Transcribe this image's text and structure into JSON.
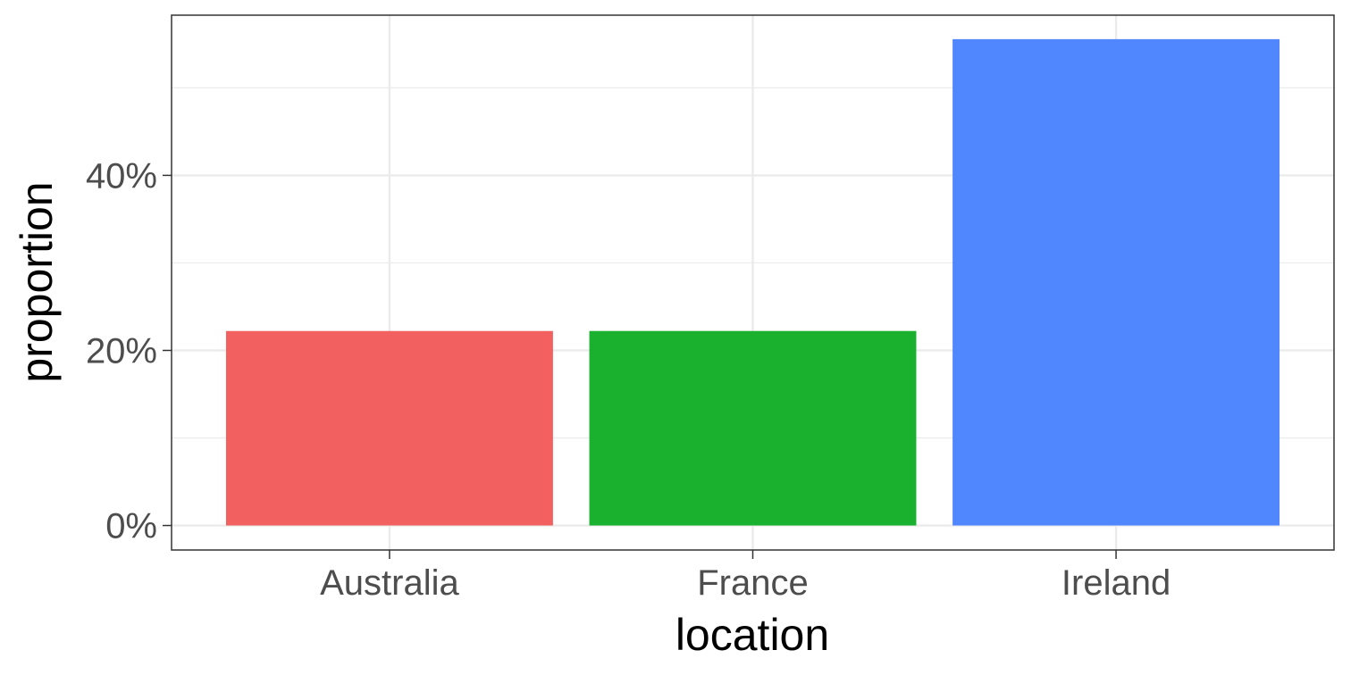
{
  "chart_data": {
    "type": "bar",
    "categories": [
      "Australia",
      "France",
      "Ireland"
    ],
    "values": [
      0.2222,
      0.2222,
      0.5556
    ],
    "colors": [
      "#F26060",
      "#1AB12F",
      "#5087FF"
    ],
    "xlabel": "location",
    "ylabel": "proportion",
    "y_ticks": [
      0,
      0.2,
      0.4
    ],
    "y_tick_labels": [
      "0%",
      "20%",
      "40%"
    ],
    "ylim": [
      -0.028,
      0.583
    ],
    "grid": true,
    "legend": "none",
    "theme": "bw"
  }
}
